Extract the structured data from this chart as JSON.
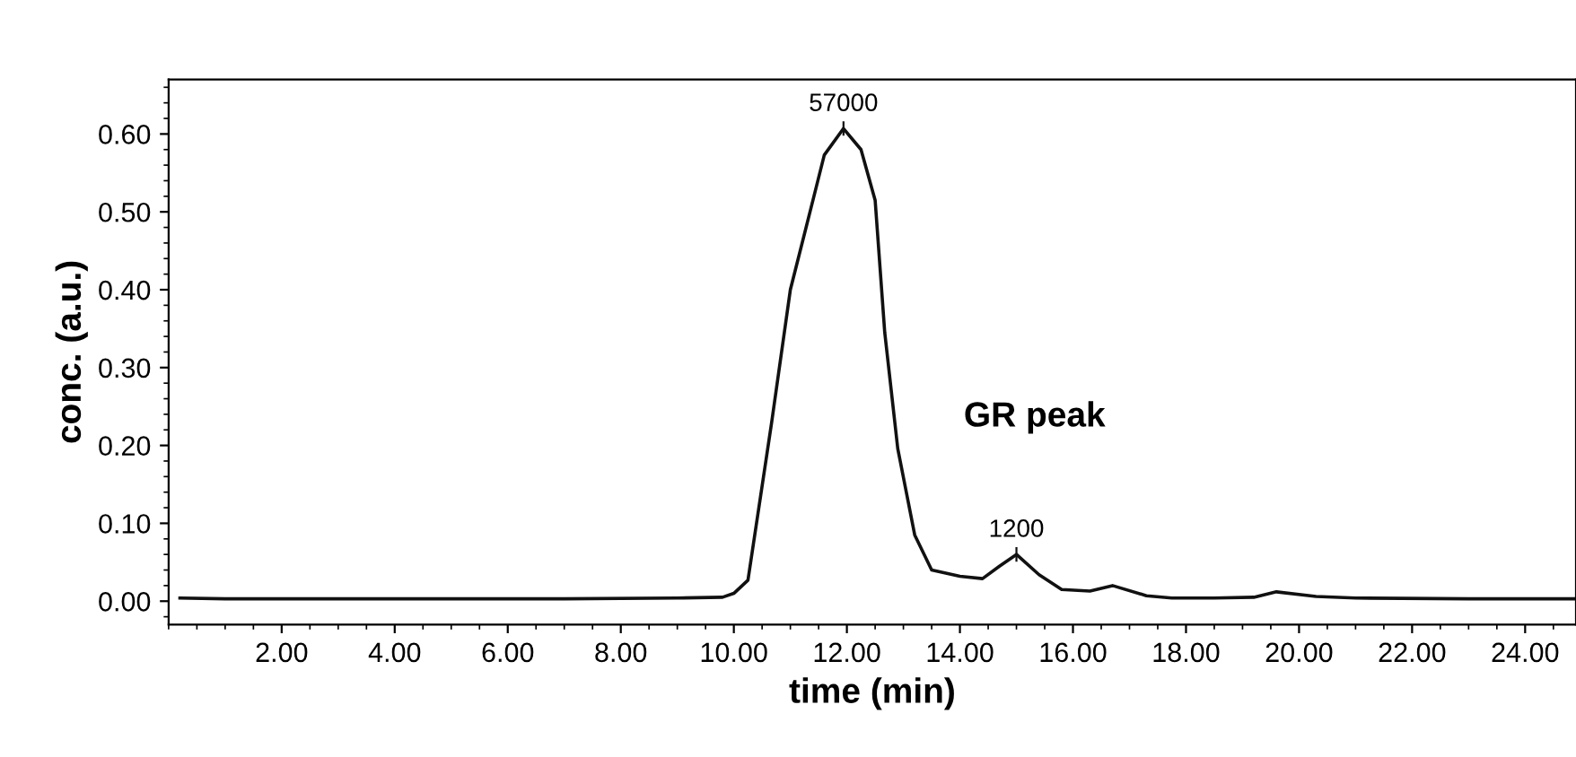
{
  "chart_data": {
    "type": "line",
    "xlabel": "time (min)",
    "ylabel": "conc. (a.u.)",
    "x": [
      0.2,
      1,
      3,
      5,
      7,
      9,
      9.8,
      10.0,
      10.25,
      10.67,
      11.0,
      11.4,
      11.6,
      11.94,
      12.25,
      12.5,
      12.67,
      12.9,
      13.2,
      13.5,
      14.0,
      14.4,
      14.7,
      15.0,
      15.4,
      15.8,
      16.3,
      16.7,
      17.3,
      17.75,
      18.5,
      19.2,
      19.6,
      20.3,
      21,
      23,
      24.9
    ],
    "series": [
      {
        "color": "#111111",
        "values": [
          0.004,
          0.003,
          0.003,
          0.003,
          0.003,
          0.004,
          0.005,
          0.01,
          0.027,
          0.23,
          0.4,
          0.515,
          0.573,
          0.607,
          0.58,
          0.515,
          0.345,
          0.196,
          0.085,
          0.04,
          0.032,
          0.029,
          0.045,
          0.06,
          0.034,
          0.015,
          0.013,
          0.02,
          0.007,
          0.004,
          0.004,
          0.005,
          0.012,
          0.006,
          0.004,
          0.003,
          0.003
        ]
      }
    ],
    "xlim": [
      0,
      24.9
    ],
    "ylim": [
      -0.03,
      0.67
    ],
    "xticks": [
      {
        "value": 2,
        "label": "2.00"
      },
      {
        "value": 4,
        "label": "4.00"
      },
      {
        "value": 6,
        "label": "6.00"
      },
      {
        "value": 8,
        "label": "8.00"
      },
      {
        "value": 10,
        "label": "10.00"
      },
      {
        "value": 12,
        "label": "12.00"
      },
      {
        "value": 14,
        "label": "14.00"
      },
      {
        "value": 16,
        "label": "16.00"
      },
      {
        "value": 18,
        "label": "18.00"
      },
      {
        "value": 20,
        "label": "20.00"
      },
      {
        "value": 22,
        "label": "22.00"
      },
      {
        "value": 24,
        "label": "24.00"
      }
    ],
    "yticks": [
      {
        "value": 0,
        "label": "0.00"
      },
      {
        "value": 0.1,
        "label": "0.10"
      },
      {
        "value": 0.2,
        "label": "0.20"
      },
      {
        "value": 0.3,
        "label": "0.30"
      },
      {
        "value": 0.4,
        "label": "0.40"
      },
      {
        "value": 0.5,
        "label": "0.50"
      },
      {
        "value": 0.6,
        "label": "0.60"
      }
    ],
    "annotations": [
      {
        "text": "57000",
        "x": 11.94,
        "y": 0.607
      },
      {
        "text": "1200",
        "x": 15.0,
        "y": 0.06
      },
      "GR peak"
    ],
    "grid": false,
    "legend": false,
    "marker": "none",
    "line_style": "solid"
  }
}
